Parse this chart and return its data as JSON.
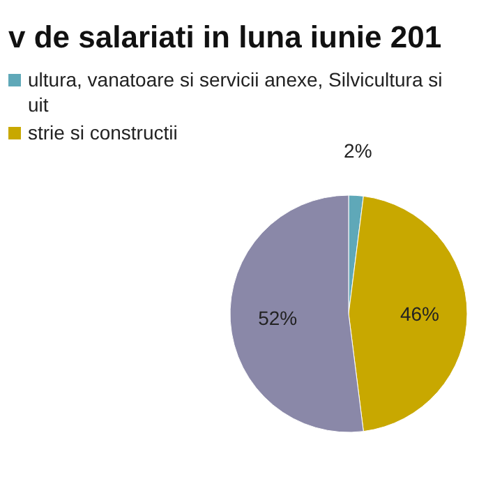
{
  "chart_data": {
    "type": "pie",
    "title": "v de salariati in luna iunie 201",
    "categories": [
      "ultura, vanatoare si servicii anexe, Silvicultura si\nuit",
      "strie si constructii",
      null
    ],
    "values": [
      2,
      46,
      52
    ],
    "colors": [
      "#5fa8b8",
      "#c8a800",
      "#8a88a8"
    ],
    "value_labels": [
      "2%",
      "46%",
      "52%"
    ],
    "legend": "top left"
  }
}
